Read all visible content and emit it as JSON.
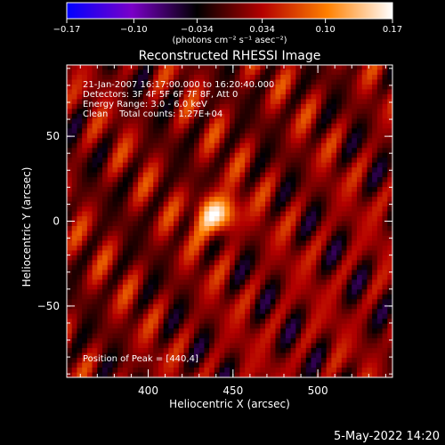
{
  "chart_data": {
    "type": "heatmap",
    "title": "Reconstructed RHESSI Image",
    "xlabel": "Heliocentric X (arcsec)",
    "ylabel": "Heliocentric Y (arcsec)",
    "xlim": [
      352,
      544
    ],
    "ylim": [
      -92,
      92
    ],
    "xticks": [
      400,
      450,
      500
    ],
    "yticks": [
      -50,
      0,
      50
    ],
    "colorbar": {
      "ticks": [
        -0.17,
        -0.1,
        -0.034,
        0.034,
        0.1,
        0.17
      ],
      "tick_labels": [
        "−0.17",
        "−0.10",
        "−0.034",
        "0.034",
        "0.10",
        "0.17"
      ],
      "unit_label": "(photons cm⁻² s⁻¹ asec⁻²)",
      "range": [
        -0.17,
        0.17
      ],
      "colormap": [
        "#0000ff",
        "#7a00c8",
        "#000000",
        "#b40000",
        "#ff8000",
        "#ffffff"
      ]
    },
    "annotations": [
      "21-Jan-2007 16:17:00.000 to 16:20:40.000",
      "Detectors: 3F 4F 5F 6F 7F 8F, Att 0",
      "Energy Range: 3.0 - 6.0 keV",
      "Clean    Total counts: 1.27E+04"
    ],
    "peak_label": "Position of Peak = [440,4]",
    "peak": {
      "x": 440,
      "y": 4,
      "value": 0.17
    },
    "footer_date": "5-May-2022 14:20"
  }
}
